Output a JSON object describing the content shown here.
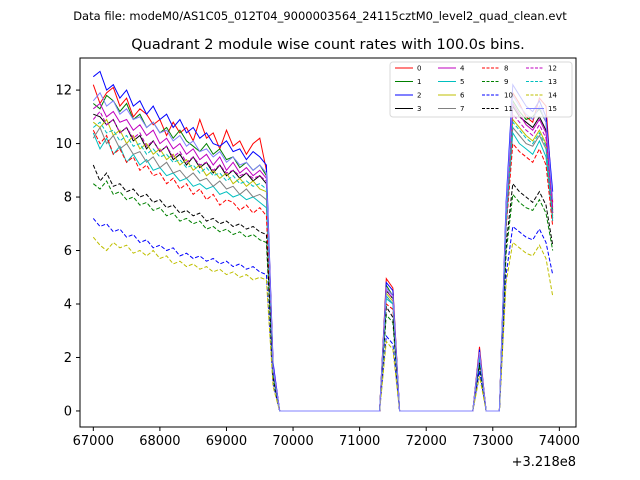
{
  "chart_data": {
    "type": "line",
    "suptitle": "Data file: modeM0/AS1C05_012T04_9000003564_24115cztM0_level2_quad_clean.evt",
    "title": "Quadrant 2 module wise count rates with 100.0s bins.",
    "xlabel": "",
    "ylabel": "",
    "x_offset_label": "+3.218e8",
    "xlim": [
      66800,
      74250
    ],
    "ylim": [
      -0.6,
      13.2
    ],
    "x_ticks": [
      67000,
      68000,
      69000,
      70000,
      71000,
      72000,
      73000,
      74000
    ],
    "x_tick_labels": [
      "67000",
      "68000",
      "69000",
      "70000",
      "71000",
      "72000",
      "73000",
      "74000"
    ],
    "y_ticks": [
      0,
      2,
      4,
      6,
      8,
      10,
      12
    ],
    "y_tick_labels": [
      "0",
      "2",
      "4",
      "6",
      "8",
      "10",
      "12"
    ],
    "grid": false,
    "legend_placement": "top-right",
    "time_segments": {
      "seg1_x": [
        67000,
        67100,
        67200,
        67300,
        67400,
        67500,
        67600,
        67700,
        67800,
        67900,
        68000,
        68100,
        68200,
        68300,
        68400,
        68500,
        68600,
        68700,
        68800,
        68900,
        69000,
        69100,
        69200,
        69300,
        69400,
        69500,
        69600,
        69700,
        69800
      ],
      "gap1_x": [
        69900,
        70000,
        70100,
        70200,
        70300,
        70400,
        70500,
        70600,
        70700,
        70800,
        70900,
        71000,
        71100,
        71200,
        71300
      ],
      "spike1_x": [
        71400,
        71500,
        71600
      ],
      "gap2_x": [
        71700,
        71800,
        71900,
        72000,
        72100,
        72200,
        72300,
        72400,
        72500,
        72600,
        72700
      ],
      "spike2_x": [
        72800
      ],
      "gap3_x": [
        72900,
        73000,
        73100
      ],
      "seg2_x": [
        73200,
        73300,
        73400,
        73500,
        73600,
        73700,
        73800,
        73900
      ]
    },
    "series": [
      {
        "name": "0",
        "color": "#ff0000",
        "dashed": false,
        "seg1": [
          12.2,
          11.5,
          11.9,
          12.1,
          11.4,
          11.7,
          11.0,
          11.3,
          11.1,
          10.7,
          10.9,
          10.3,
          10.8,
          10.4,
          10.6,
          10.1,
          10.9,
          10.2,
          10.4,
          9.8,
          10.5,
          9.9,
          10.1,
          9.6,
          10.0,
          10.2,
          9.0,
          1.7,
          0.0
        ],
        "spike1": [
          4.95,
          4.6,
          0.0
        ],
        "spike2": 2.4,
        "seg2": [
          7.5,
          11.9,
          11.5,
          11.0,
          10.8,
          11.7,
          11.4,
          7.8
        ]
      },
      {
        "name": "1",
        "color": "#008000",
        "dashed": false,
        "seg1": [
          11.5,
          11.3,
          11.8,
          11.6,
          11.2,
          11.5,
          10.9,
          11.1,
          10.6,
          10.8,
          10.4,
          10.6,
          10.2,
          10.5,
          10.1,
          9.9,
          9.7,
          10.0,
          9.6,
          9.8,
          9.4,
          9.5,
          9.1,
          9.3,
          9.0,
          9.2,
          8.8,
          1.6,
          0.0
        ],
        "spike1": [
          4.7,
          4.3,
          0.0
        ],
        "spike2": 2.2,
        "seg2": [
          7.2,
          11.6,
          11.2,
          10.9,
          11.0,
          11.3,
          10.8,
          7.5
        ]
      },
      {
        "name": "2",
        "color": "#0000ff",
        "dashed": false,
        "seg1": [
          12.5,
          12.7,
          12.0,
          12.2,
          11.7,
          12.0,
          11.4,
          11.6,
          11.1,
          11.4,
          10.9,
          11.1,
          10.6,
          10.9,
          10.4,
          10.6,
          10.2,
          10.4,
          10.0,
          9.9,
          10.1,
          9.7,
          9.8,
          9.4,
          9.7,
          9.5,
          9.2,
          1.8,
          0.0
        ],
        "spike1": [
          4.8,
          4.5,
          0.0
        ],
        "spike2": 2.3,
        "seg2": [
          7.8,
          12.2,
          11.8,
          11.4,
          11.2,
          11.6,
          11.0,
          8.2
        ]
      },
      {
        "name": "3",
        "color": "#000000",
        "dashed": false,
        "seg1": [
          11.1,
          11.0,
          10.7,
          10.9,
          10.4,
          10.6,
          10.1,
          10.3,
          9.8,
          10.1,
          9.7,
          9.9,
          9.4,
          9.6,
          9.2,
          9.5,
          9.1,
          9.3,
          8.9,
          9.2,
          8.8,
          9.0,
          8.7,
          8.9,
          8.6,
          8.8,
          8.5,
          1.5,
          0.0
        ],
        "spike1": [
          4.5,
          4.2,
          0.0
        ],
        "spike2": 2.1,
        "seg2": [
          7.4,
          11.4,
          11.0,
          10.8,
          10.6,
          11.0,
          10.5,
          7.4
        ]
      },
      {
        "name": "4",
        "color": "#bf00bf",
        "dashed": false,
        "seg1": [
          11.3,
          11.5,
          11.0,
          11.2,
          10.8,
          10.9,
          10.5,
          10.7,
          10.3,
          10.5,
          10.0,
          10.2,
          9.8,
          10.0,
          9.6,
          9.8,
          9.4,
          9.6,
          9.2,
          9.5,
          9.0,
          9.3,
          8.9,
          9.1,
          8.8,
          9.0,
          8.7,
          1.6,
          0.0
        ],
        "spike1": [
          4.6,
          4.3,
          0.0
        ],
        "spike2": 2.2,
        "seg2": [
          7.3,
          11.5,
          11.1,
          10.7,
          10.5,
          10.9,
          10.4,
          7.6
        ]
      },
      {
        "name": "5",
        "color": "#00bfbf",
        "dashed": false,
        "seg1": [
          10.4,
          9.8,
          10.2,
          9.6,
          9.9,
          9.3,
          9.6,
          9.2,
          9.4,
          9.0,
          9.1,
          8.8,
          8.9,
          8.6,
          8.7,
          8.4,
          8.5,
          8.3,
          8.4,
          8.1,
          8.2,
          8.0,
          8.1,
          7.9,
          8.0,
          7.8,
          7.6,
          1.4,
          0.0
        ],
        "spike1": [
          4.2,
          4.0,
          0.0
        ],
        "spike2": 2.0,
        "seg2": [
          6.9,
          10.4,
          10.0,
          9.8,
          9.6,
          10.1,
          9.5,
          7.1
        ]
      },
      {
        "name": "6",
        "color": "#bfbf00",
        "dashed": false,
        "seg1": [
          10.8,
          10.6,
          10.9,
          10.3,
          10.5,
          10.0,
          10.3,
          9.8,
          10.0,
          9.6,
          9.8,
          9.4,
          9.6,
          9.2,
          9.4,
          9.0,
          9.2,
          8.8,
          9.0,
          8.7,
          8.9,
          8.5,
          8.7,
          8.4,
          8.6,
          8.3,
          8.2,
          1.5,
          0.0
        ],
        "spike1": [
          4.4,
          4.1,
          0.0
        ],
        "spike2": 2.1,
        "seg2": [
          7.1,
          10.9,
          10.6,
          10.3,
          10.1,
          10.5,
          10.0,
          7.3
        ]
      },
      {
        "name": "7",
        "color": "#808080",
        "dashed": false,
        "seg1": [
          10.2,
          10.6,
          10.0,
          10.3,
          9.8,
          10.0,
          9.6,
          9.7,
          9.3,
          9.5,
          9.1,
          9.3,
          8.9,
          9.0,
          8.7,
          8.9,
          8.6,
          8.7,
          8.4,
          8.6,
          8.3,
          8.4,
          8.1,
          8.3,
          8.0,
          8.1,
          7.9,
          1.4,
          0.0
        ],
        "spike1": [
          4.3,
          4.0,
          0.0
        ],
        "spike2": 2.0,
        "seg2": [
          7.0,
          10.6,
          10.3,
          10.0,
          9.9,
          10.3,
          9.8,
          7.2
        ]
      },
      {
        "name": "8",
        "color": "#ff0000",
        "dashed": true,
        "seg1": [
          10.5,
          10.0,
          10.3,
          9.6,
          9.8,
          9.3,
          9.5,
          9.0,
          9.2,
          8.8,
          8.9,
          8.5,
          8.7,
          8.3,
          8.5,
          8.1,
          8.3,
          7.9,
          8.1,
          7.7,
          7.9,
          7.8,
          7.5,
          7.7,
          7.4,
          7.6,
          7.3,
          1.3,
          0.0
        ],
        "spike1": [
          4.0,
          3.8,
          0.0
        ],
        "spike2": 1.9,
        "seg2": [
          6.8,
          10.0,
          9.7,
          9.5,
          9.3,
          9.8,
          9.2,
          6.9
        ]
      },
      {
        "name": "9",
        "color": "#008000",
        "dashed": true,
        "seg1": [
          8.5,
          8.3,
          8.6,
          8.1,
          8.2,
          7.9,
          8.0,
          7.7,
          7.8,
          7.5,
          7.6,
          7.3,
          7.4,
          7.1,
          7.2,
          7.0,
          7.1,
          6.8,
          6.9,
          6.7,
          6.8,
          6.6,
          6.7,
          6.5,
          6.6,
          6.4,
          6.3,
          1.2,
          0.0
        ],
        "spike1": [
          3.6,
          3.3,
          0.0
        ],
        "spike2": 1.7,
        "seg2": [
          5.9,
          8.1,
          7.8,
          7.6,
          7.5,
          7.9,
          7.4,
          6.0
        ]
      },
      {
        "name": "10",
        "color": "#0000ff",
        "dashed": true,
        "seg1": [
          7.2,
          6.9,
          7.0,
          6.7,
          6.8,
          6.5,
          6.6,
          6.3,
          6.4,
          6.1,
          6.2,
          6.0,
          6.1,
          5.8,
          5.9,
          5.7,
          5.8,
          5.6,
          5.7,
          5.5,
          5.6,
          5.4,
          5.5,
          5.3,
          5.4,
          5.2,
          5.1,
          1.0,
          0.0
        ],
        "spike1": [
          2.8,
          2.5,
          0.0
        ],
        "spike2": 1.5,
        "seg2": [
          5.1,
          6.9,
          6.7,
          6.5,
          6.4,
          6.8,
          6.3,
          5.1
        ]
      },
      {
        "name": "11",
        "color": "#000000",
        "dashed": true,
        "seg1": [
          9.2,
          8.6,
          8.9,
          8.4,
          8.5,
          8.2,
          8.3,
          8.0,
          8.1,
          7.8,
          7.9,
          7.6,
          7.7,
          7.4,
          7.5,
          7.3,
          7.4,
          7.1,
          7.2,
          7.0,
          7.1,
          6.9,
          7.0,
          6.8,
          6.9,
          6.7,
          6.6,
          1.3,
          0.0
        ],
        "spike1": [
          3.9,
          3.5,
          0.0
        ],
        "spike2": 1.8,
        "seg2": [
          6.2,
          8.5,
          8.2,
          8.0,
          7.8,
          8.2,
          7.7,
          6.2
        ]
      },
      {
        "name": "12",
        "color": "#bf00bf",
        "dashed": true,
        "seg1": [
          10.9,
          11.2,
          10.7,
          10.9,
          10.4,
          10.6,
          10.2,
          10.4,
          9.9,
          10.1,
          9.7,
          9.9,
          9.5,
          9.7,
          9.3,
          9.5,
          9.2,
          9.3,
          9.0,
          9.2,
          8.9,
          9.0,
          8.8,
          8.9,
          8.7,
          8.8,
          8.6,
          1.6,
          0.0
        ],
        "spike1": [
          4.5,
          4.2,
          0.0
        ],
        "spike2": 2.1,
        "seg2": [
          7.2,
          11.1,
          10.8,
          10.5,
          10.3,
          10.7,
          10.2,
          7.4
        ]
      },
      {
        "name": "13",
        "color": "#00bfbf",
        "dashed": true,
        "seg1": [
          10.6,
          10.8,
          10.4,
          10.5,
          10.1,
          10.3,
          9.9,
          10.0,
          9.6,
          9.8,
          9.5,
          9.6,
          9.3,
          9.4,
          9.1,
          9.2,
          8.9,
          9.1,
          8.8,
          8.9,
          8.6,
          8.8,
          8.5,
          8.6,
          8.4,
          8.5,
          8.3,
          1.5,
          0.0
        ],
        "spike1": [
          4.3,
          4.0,
          0.0
        ],
        "spike2": 2.0,
        "seg2": [
          7.0,
          10.8,
          10.5,
          10.2,
          10.0,
          10.4,
          9.9,
          7.2
        ]
      },
      {
        "name": "14",
        "color": "#bfbf00",
        "dashed": true,
        "seg1": [
          6.5,
          6.2,
          6.0,
          6.3,
          6.1,
          6.2,
          5.9,
          6.0,
          5.8,
          6.0,
          5.7,
          5.8,
          5.5,
          5.6,
          5.4,
          5.5,
          5.3,
          5.4,
          5.2,
          5.3,
          5.1,
          5.2,
          5.0,
          5.1,
          4.9,
          5.0,
          4.9,
          0.9,
          0.0
        ],
        "spike1": [
          2.6,
          2.3,
          0.0
        ],
        "spike2": 1.3,
        "seg2": [
          4.8,
          6.3,
          6.1,
          5.9,
          5.8,
          6.2,
          5.7,
          4.3
        ]
      },
      {
        "name": "15",
        "color": "#8080ff",
        "dashed": false,
        "seg1": [
          11.6,
          11.9,
          11.4,
          11.6,
          11.1,
          11.3,
          10.9,
          11.0,
          10.6,
          10.8,
          10.4,
          10.5,
          10.1,
          10.3,
          9.9,
          10.1,
          9.7,
          9.8,
          9.5,
          9.7,
          9.3,
          9.5,
          9.2,
          9.3,
          9.0,
          9.2,
          8.9,
          1.6,
          0.0
        ],
        "spike1": [
          4.6,
          4.3,
          0.0
        ],
        "spike2": 2.2,
        "seg2": [
          7.6,
          11.8,
          11.4,
          11.1,
          10.9,
          11.4,
          10.8,
          7.9
        ]
      }
    ]
  }
}
